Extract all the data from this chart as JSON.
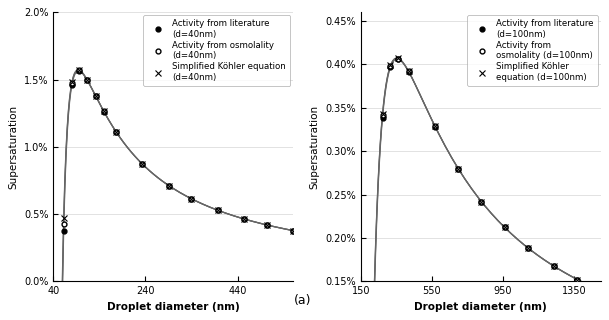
{
  "panel_a": {
    "ddry_nm": 40,
    "xlim": [
      40,
      560
    ],
    "xticks": [
      40,
      240,
      440
    ],
    "ylim": [
      0.0,
      0.02
    ],
    "yticks": [
      0.0,
      0.005,
      0.01,
      0.015,
      0.02
    ],
    "ylabel": "Supersaturation",
    "xlabel": "Droplet diameter (nm)",
    "legend_labels": [
      "Activity from literature\n(d=40nm)",
      "Activity from osmolality\n(d=40nm)",
      "Simplified Köhler equation\n(d=40nm)"
    ]
  },
  "panel_b": {
    "ddry_nm": 100,
    "xlim": [
      150,
      1500
    ],
    "xticks": [
      150,
      550,
      950,
      1350
    ],
    "ylim": [
      0.0015,
      0.0046
    ],
    "yticks": [
      0.0015,
      0.002,
      0.0025,
      0.003,
      0.0035,
      0.004,
      0.0045
    ],
    "ylabel": "Supersaturation",
    "xlabel": "Droplet diameter (nm)",
    "legend_labels": [
      "Activity from literature\n(d=100nm)",
      "Activity from\nosmolality (d=100nm)",
      "Simplified Köhler\nequation (d=100nm)"
    ]
  },
  "line_color": "#666666",
  "marker_lit_color": "#222222",
  "marker_osm_color": "#888888",
  "marker_simp_color": "#888888",
  "background_color": "#ffffff",
  "label_a": "(a)"
}
